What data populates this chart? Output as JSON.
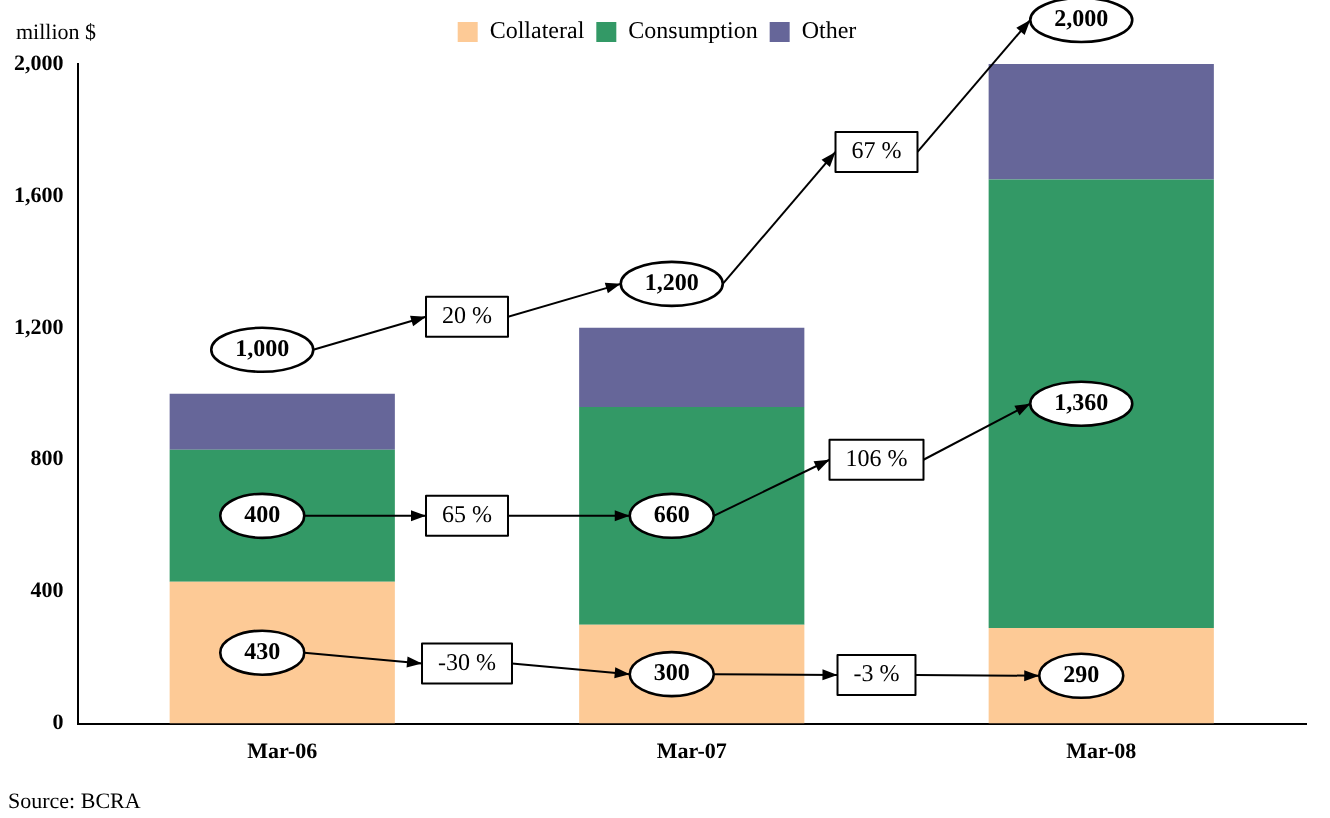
{
  "chart_data": {
    "type": "bar",
    "stacked": true,
    "ylabel": "million $",
    "categories": [
      "Mar-06",
      "Mar-07",
      "Mar-08"
    ],
    "series": [
      {
        "name": "Collateral",
        "color": "#fdca96",
        "values": [
          430,
          300,
          290
        ],
        "value_labels": [
          "430",
          "300",
          "290"
        ]
      },
      {
        "name": "Consumption",
        "color": "#339966",
        "values": [
          400,
          660,
          1360
        ],
        "value_labels": [
          "400",
          "660",
          "1,360"
        ]
      },
      {
        "name": "Other",
        "color": "#666699",
        "values": [
          170,
          240,
          350
        ]
      }
    ],
    "totals": [
      "1,000",
      "1,200",
      "2,000"
    ],
    "ylim": [
      0,
      2000
    ],
    "yticks": [
      {
        "value": 0,
        "label": "0"
      },
      {
        "value": 400,
        "label": "400"
      },
      {
        "value": 800,
        "label": "800"
      },
      {
        "value": 1200,
        "label": "1,200"
      },
      {
        "value": 1600,
        "label": "1,600"
      },
      {
        "value": 2000,
        "label": "2,000"
      }
    ],
    "legend": "top left",
    "grid": false,
    "annotations": [
      "20 %",
      "67 %",
      "65 %",
      "106 %",
      "-30 %",
      "-3 %",
      "Source: BCRA"
    ]
  }
}
